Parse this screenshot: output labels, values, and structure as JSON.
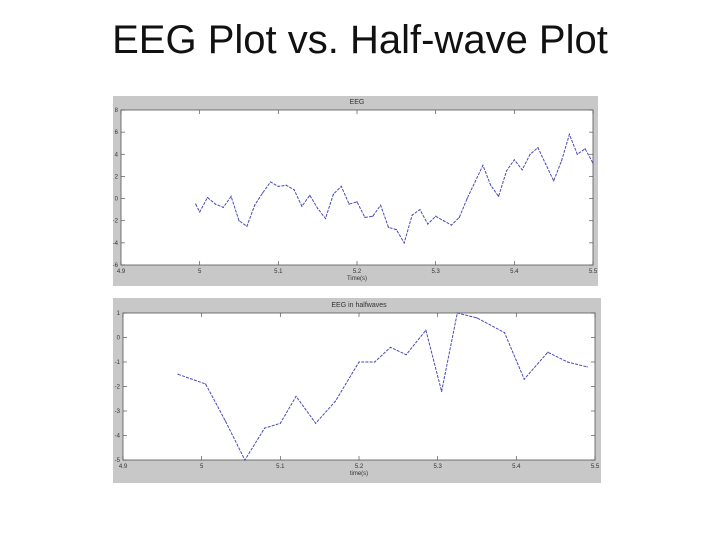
{
  "slide": {
    "title": "EEG Plot vs. Half-wave Plot"
  },
  "colors": {
    "frame_bg": "#c8c8c8",
    "plot_bg": "#ffffff",
    "line": "#4a4ab8",
    "text": "#333333"
  },
  "chart_data": [
    {
      "type": "line",
      "title": "EEG",
      "xlabel": "Time(s)",
      "ylabel": "",
      "xlim": [
        4.9,
        5.5
      ],
      "ylim": [
        -6,
        8
      ],
      "xticks": [
        "4.9",
        "5",
        "5.1",
        "5.2",
        "5.3",
        "5.4",
        "5.5"
      ],
      "yticks": [
        "-6",
        "-4",
        "-2",
        "0",
        "2",
        "4",
        "6",
        "8"
      ],
      "grid": false,
      "series": [
        {
          "x": [
            4.995,
            5.0,
            5.01,
            5.02,
            5.03,
            5.04,
            5.05,
            5.06,
            5.07,
            5.08,
            5.09,
            5.1,
            5.11,
            5.12,
            5.13,
            5.14,
            5.15,
            5.16,
            5.17,
            5.18,
            5.19,
            5.2,
            5.21,
            5.22,
            5.23,
            5.24,
            5.25,
            5.26,
            5.27,
            5.28,
            5.29,
            5.3,
            5.31,
            5.32,
            5.33,
            5.34,
            5.35,
            5.36,
            5.37,
            5.38,
            5.39,
            5.4,
            5.41,
            5.42,
            5.43,
            5.44,
            5.45,
            5.46,
            5.47,
            5.48,
            5.49,
            5.5
          ],
          "y": [
            -0.5,
            -1.2,
            0.1,
            -0.5,
            -0.8,
            0.2,
            -2.0,
            -2.5,
            -0.6,
            0.5,
            1.5,
            1.1,
            1.2,
            0.8,
            -0.7,
            0.3,
            -0.9,
            -1.8,
            0.4,
            1.1,
            -0.5,
            -0.3,
            -1.7,
            -1.6,
            -0.6,
            -2.6,
            -2.8,
            -4.0,
            -1.5,
            -1.0,
            -2.3,
            -1.6,
            -2.0,
            -2.4,
            -1.7,
            0.0,
            1.5,
            3.0,
            1.2,
            0.2,
            2.5,
            3.5,
            2.6,
            4.0,
            4.6,
            3.1,
            1.6,
            3.4,
            5.8,
            4.0,
            4.5,
            3.2
          ]
        }
      ]
    },
    {
      "type": "line",
      "title": "EEG in halfwaves",
      "xlabel": "time(s)",
      "ylabel": "",
      "xlim": [
        4.9,
        5.5
      ],
      "ylim": [
        -5,
        1
      ],
      "xticks": [
        "4.9",
        "5",
        "5.1",
        "5.2",
        "5.3",
        "5.4",
        "5.5"
      ],
      "yticks": [
        "-5",
        "-4",
        "-3",
        "-2",
        "-1",
        "0",
        "1"
      ],
      "grid": false,
      "series": [
        {
          "x": [
            4.97,
            5.005,
            5.03,
            5.055,
            5.08,
            5.1,
            5.12,
            5.145,
            5.17,
            5.2,
            5.22,
            5.24,
            5.26,
            5.285,
            5.305,
            5.325,
            5.35,
            5.385,
            5.41,
            5.44,
            5.465,
            5.49
          ],
          "y": [
            -1.5,
            -1.9,
            -3.4,
            -5.0,
            -3.7,
            -3.5,
            -2.4,
            -3.5,
            -2.6,
            -1.0,
            -1.0,
            -0.4,
            -0.7,
            0.3,
            -2.2,
            1.0,
            0.8,
            0.2,
            -1.7,
            -0.6,
            -1.0,
            -1.2
          ]
        }
      ]
    }
  ]
}
